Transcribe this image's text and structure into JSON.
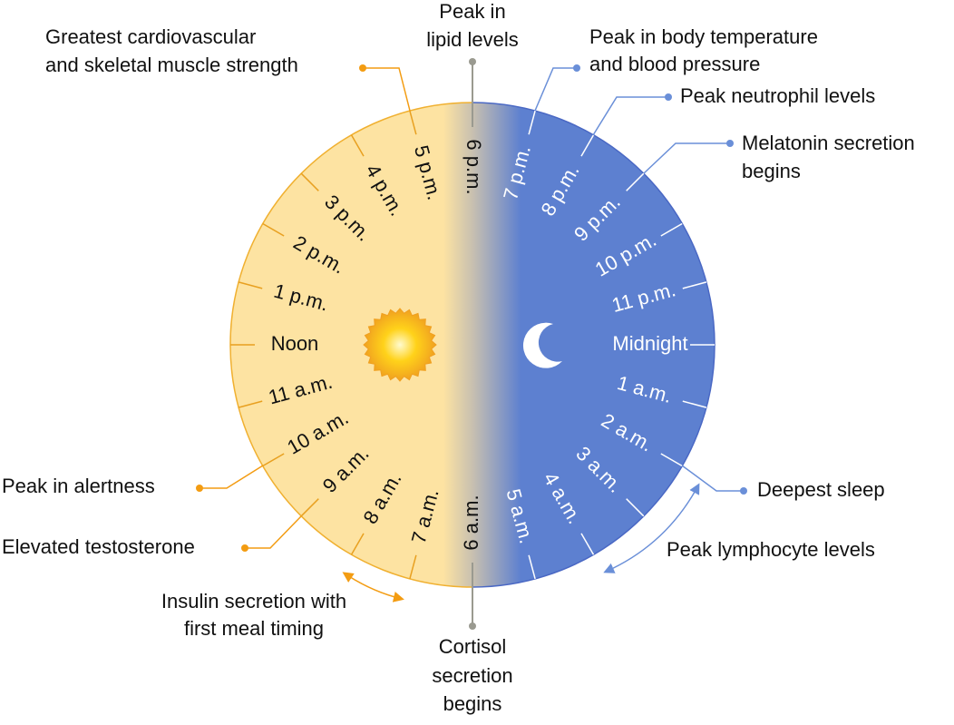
{
  "hours": [
    "6 p.m.",
    "7 p.m.",
    "8 p.m.",
    "9 p.m.",
    "10 p.m.",
    "11 p.m.",
    "Midnight",
    "1 a.m.",
    "2 a.m.",
    "3 a.m.",
    "4 a.m.",
    "5 a.m.",
    "6 a.m.",
    "7 a.m.",
    "8 a.m.",
    "9 a.m.",
    "10 a.m.",
    "11 a.m.",
    "Noon",
    "1 p.m.",
    "2 p.m.",
    "3 p.m.",
    "4 p.m.",
    "5 p.m."
  ],
  "annotations": {
    "strength": [
      "Greatest cardiovascular",
      "and skeletal muscle strength"
    ],
    "lipid": [
      "Peak in",
      "lipid levels"
    ],
    "temperature": [
      "Peak in body temperature",
      "and blood pressure"
    ],
    "neutrophil": [
      "Peak neutrophil levels"
    ],
    "melatonin": [
      "Melatonin secretion",
      "begins"
    ],
    "sleep": [
      "Deepest sleep"
    ],
    "lymphocyte": [
      "Peak lymphocyte levels"
    ],
    "alertness": [
      "Peak in alertness"
    ],
    "testosterone": [
      "Elevated testosterone"
    ],
    "insulin": [
      "Insulin secretion with",
      "first meal timing"
    ],
    "cortisol": [
      "Cortisol",
      "secretion",
      "begins"
    ]
  }
}
